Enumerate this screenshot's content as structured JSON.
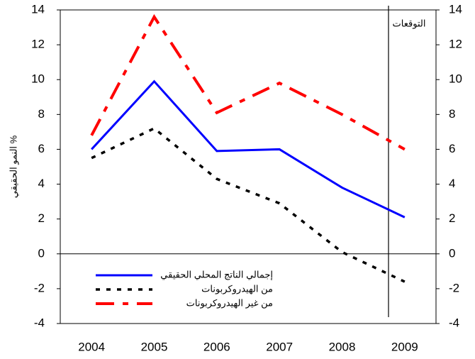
{
  "chart_data": {
    "type": "line",
    "y_label": "النمو الحقيقي %",
    "annotation": "التوقعات",
    "categories": [
      "2004",
      "2005",
      "2006",
      "2007",
      "2008",
      "2009"
    ],
    "series": [
      {
        "name": "إجمالي الناتج المحلي الحقيقي",
        "color": "#0000ff",
        "style": "solid",
        "values": [
          6.0,
          9.9,
          5.9,
          6.0,
          3.8,
          2.1
        ]
      },
      {
        "name": "من الهيدروكربونات",
        "color": "#000000",
        "style": "dashed",
        "values": [
          5.5,
          7.2,
          4.3,
          2.9,
          0.1,
          -1.6
        ]
      },
      {
        "name": "من غير الهيدروكربونات",
        "color": "#ff0000",
        "style": "dashdot",
        "values": [
          6.8,
          13.6,
          8.1,
          9.8,
          8.0,
          6.0
        ]
      }
    ],
    "ylim": [
      -4,
      14
    ],
    "yticks": [
      -4,
      -2,
      0,
      2,
      4,
      6,
      8,
      10,
      12,
      14
    ],
    "y2lim": [
      -4,
      14
    ],
    "y2ticks": [
      -4,
      -2,
      0,
      2,
      4,
      6,
      8,
      10,
      12,
      14
    ],
    "legend": "lower left",
    "grid": false
  }
}
